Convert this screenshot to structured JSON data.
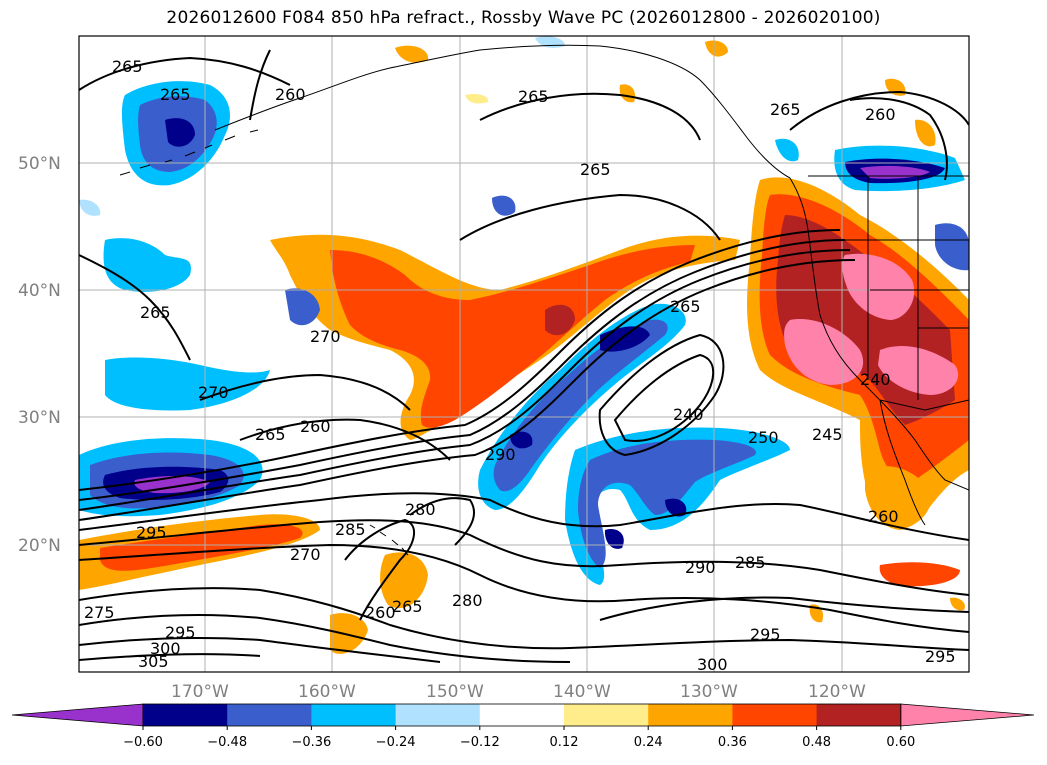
{
  "title": "2026012600 F084 850 hPa refract., Rossby Wave PC (2026012800 - 2026020100)",
  "lat_ticks": [
    "50°N",
    "40°N",
    "30°N",
    "20°N"
  ],
  "lon_ticks": [
    "170°W",
    "160°W",
    "150°W",
    "140°W",
    "130°W",
    "120°W"
  ],
  "colorbar": {
    "colors": [
      "#9932cc",
      "#00008b",
      "#3a5fcd",
      "#00bfff",
      "#b0e2ff",
      "#ffffff",
      "#ffec8b",
      "#ffa500",
      "#ff4500",
      "#b22222",
      "#ff82ab"
    ],
    "tick_labels": [
      "−0.60",
      "−0.48",
      "−0.36",
      "−0.24",
      "−0.12",
      "0.12",
      "0.24",
      "0.36",
      "0.48",
      "0.60"
    ]
  },
  "contour_labels": [
    "265",
    "265",
    "260",
    "265",
    "265",
    "265",
    "260",
    "265",
    "270",
    "270",
    "265",
    "260",
    "290",
    "265",
    "240",
    "250",
    "245",
    "240",
    "295",
    "285",
    "280",
    "280",
    "260",
    "265",
    "290",
    "285",
    "295",
    "300",
    "260",
    "275",
    "295",
    "300",
    "305",
    "295",
    "270"
  ],
  "shading_colors": {
    "pink": "#ff82ab",
    "darkred": "#b22222",
    "red": "#ff4500",
    "orange": "#ffa500",
    "yellow": "#ffec8b",
    "lightblue": "#b0e2ff",
    "cyan": "#00bfff",
    "blue": "#3a5fcd",
    "navy": "#00008b",
    "purple": "#9932cc"
  }
}
